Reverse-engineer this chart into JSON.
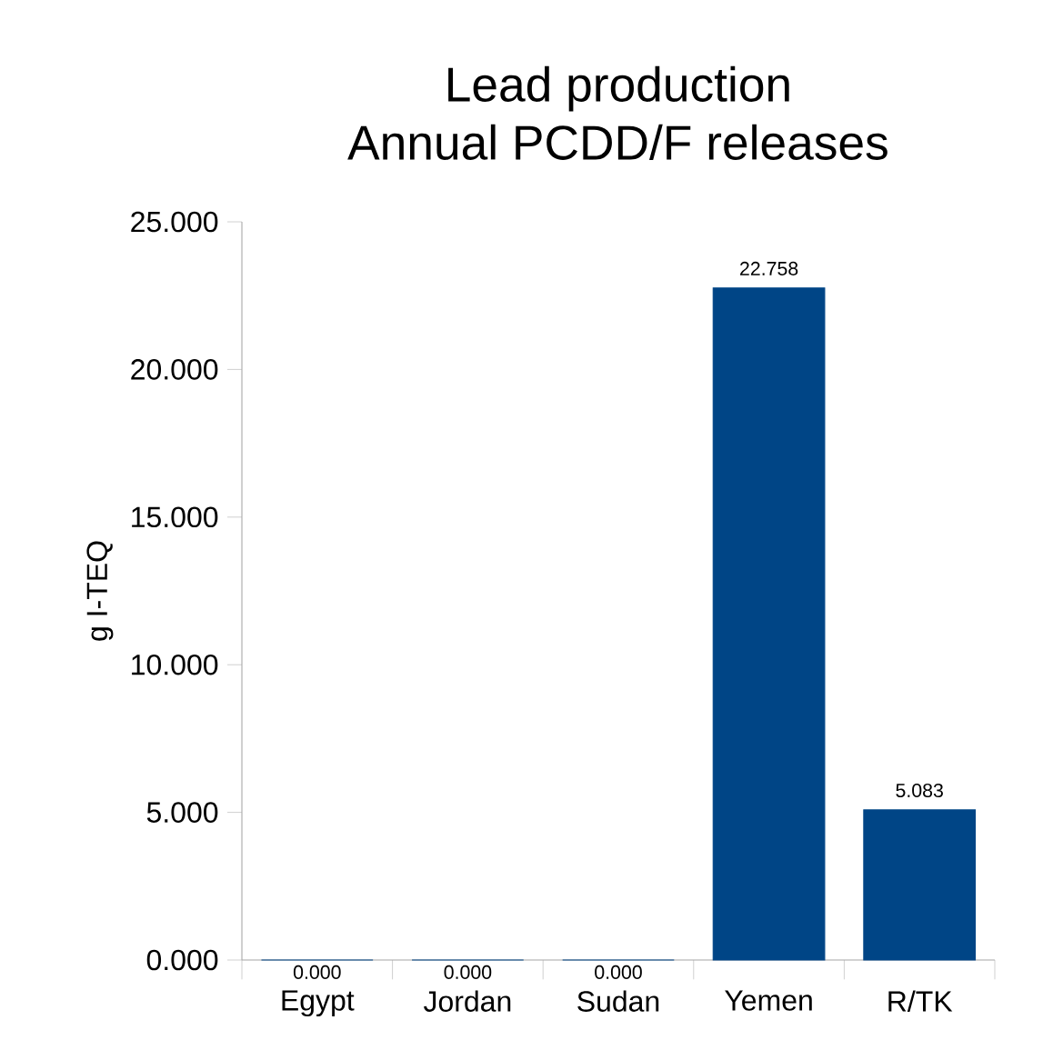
{
  "chart_data": {
    "type": "bar",
    "title": "Lead production",
    "subtitle": "Annual PCDD/F releases",
    "ylabel": "g I-TEQ",
    "categories": [
      "Egypt",
      "Jordan",
      "Sudan",
      "Yemen",
      "R/TK"
    ],
    "values": [
      0,
      0,
      0,
      22.758,
      5.083
    ],
    "value_labels": [
      "0.000",
      "0.000",
      "0.000",
      "22.758",
      "5.083"
    ],
    "color": "#004586",
    "ylim": [
      0,
      25
    ],
    "yticks": [
      {
        "value": 0,
        "label": "0.000"
      },
      {
        "value": 5,
        "label": "5.000"
      },
      {
        "value": 10,
        "label": "10.000"
      },
      {
        "value": 15,
        "label": "15.000"
      },
      {
        "value": 20,
        "label": "20.000"
      },
      {
        "value": 25,
        "label": "25.000"
      }
    ],
    "grid": false
  }
}
